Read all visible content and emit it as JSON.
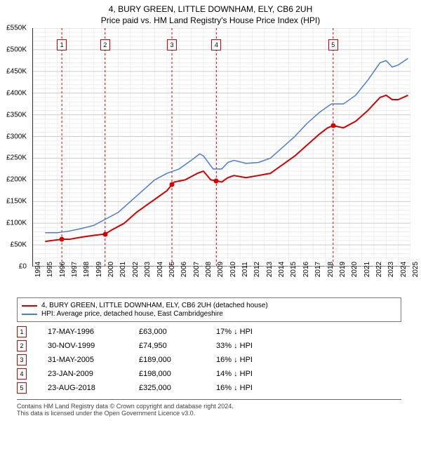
{
  "title": "4, BURY GREEN, LITTLE DOWNHAM, ELY, CB6 2UH",
  "subtitle": "Price paid vs. HM Land Registry's House Price Index (HPI)",
  "chart": {
    "type": "line",
    "background_color": "#ffffff",
    "grid_major_color": "#cccccc",
    "grid_minor_color": "#eeeeee",
    "axis_color": "#333333",
    "label_fontsize": 10,
    "title_fontsize": 12,
    "x": {
      "min": 1994,
      "max": 2025,
      "tick_step": 1,
      "labels": [
        "1994",
        "1995",
        "1996",
        "1997",
        "1998",
        "1999",
        "2000",
        "2001",
        "2002",
        "2003",
        "2004",
        "2005",
        "2006",
        "2007",
        "2008",
        "2009",
        "2010",
        "2011",
        "2012",
        "2013",
        "2014",
        "2015",
        "2016",
        "2017",
        "2018",
        "2019",
        "2020",
        "2021",
        "2022",
        "2023",
        "2024",
        "2025"
      ]
    },
    "y": {
      "min": 0,
      "max": 550000,
      "tick_step": 50000,
      "labels": [
        "£0",
        "£50K",
        "£100K",
        "£150K",
        "£200K",
        "£250K",
        "£300K",
        "£350K",
        "£400K",
        "£450K",
        "£500K",
        "£550K"
      ]
    },
    "series": [
      {
        "name": "property",
        "label": "4, BURY GREEN, LITTLE DOWNHAM, ELY, CB6 2UH (detached house)",
        "color": "#d40000",
        "line_width": 2,
        "data": [
          [
            1995.0,
            58000
          ],
          [
            1996.37,
            63000
          ],
          [
            1997.0,
            63000
          ],
          [
            1998.0,
            68000
          ],
          [
            1999.0,
            72000
          ],
          [
            1999.92,
            74950
          ],
          [
            2000.5,
            85000
          ],
          [
            2001.5,
            100000
          ],
          [
            2002.5,
            125000
          ],
          [
            2003.5,
            145000
          ],
          [
            2004.5,
            165000
          ],
          [
            2005.0,
            175000
          ],
          [
            2005.41,
            189000
          ],
          [
            2005.6,
            195000
          ],
          [
            2006.5,
            200000
          ],
          [
            2007.5,
            215000
          ],
          [
            2008.0,
            220000
          ],
          [
            2008.6,
            200000
          ],
          [
            2009.06,
            198000
          ],
          [
            2009.5,
            195000
          ],
          [
            2010.0,
            205000
          ],
          [
            2010.5,
            210000
          ],
          [
            2011.5,
            205000
          ],
          [
            2012.5,
            210000
          ],
          [
            2013.5,
            215000
          ],
          [
            2014.5,
            235000
          ],
          [
            2015.5,
            255000
          ],
          [
            2016.5,
            280000
          ],
          [
            2017.5,
            305000
          ],
          [
            2018.2,
            320000
          ],
          [
            2018.65,
            325000
          ],
          [
            2019.5,
            320000
          ],
          [
            2020.5,
            335000
          ],
          [
            2021.5,
            360000
          ],
          [
            2022.5,
            390000
          ],
          [
            2023.0,
            395000
          ],
          [
            2023.5,
            385000
          ],
          [
            2024.0,
            385000
          ],
          [
            2024.8,
            395000
          ]
        ]
      },
      {
        "name": "hpi",
        "label": "HPI: Average price, detached house, East Cambridgeshire",
        "color": "#4a7bd4",
        "line_width": 1.5,
        "data": [
          [
            1995.0,
            78000
          ],
          [
            1996.0,
            78000
          ],
          [
            1997.0,
            82000
          ],
          [
            1998.0,
            88000
          ],
          [
            1999.0,
            95000
          ],
          [
            2000.0,
            110000
          ],
          [
            2001.0,
            125000
          ],
          [
            2002.0,
            150000
          ],
          [
            2003.0,
            175000
          ],
          [
            2004.0,
            200000
          ],
          [
            2005.0,
            215000
          ],
          [
            2006.0,
            225000
          ],
          [
            2007.0,
            245000
          ],
          [
            2007.7,
            260000
          ],
          [
            2008.0,
            255000
          ],
          [
            2008.8,
            225000
          ],
          [
            2009.5,
            225000
          ],
          [
            2010.0,
            240000
          ],
          [
            2010.5,
            245000
          ],
          [
            2011.5,
            238000
          ],
          [
            2012.5,
            240000
          ],
          [
            2013.5,
            250000
          ],
          [
            2014.5,
            275000
          ],
          [
            2015.5,
            300000
          ],
          [
            2016.5,
            330000
          ],
          [
            2017.5,
            355000
          ],
          [
            2018.5,
            375000
          ],
          [
            2019.5,
            375000
          ],
          [
            2020.5,
            395000
          ],
          [
            2021.5,
            430000
          ],
          [
            2022.5,
            470000
          ],
          [
            2023.0,
            475000
          ],
          [
            2023.5,
            460000
          ],
          [
            2024.0,
            465000
          ],
          [
            2024.8,
            480000
          ]
        ]
      }
    ],
    "sale_markers": [
      {
        "n": "1",
        "year": 1996.37,
        "price": 63000
      },
      {
        "n": "2",
        "year": 1999.92,
        "price": 74950
      },
      {
        "n": "3",
        "year": 2005.41,
        "price": 189000
      },
      {
        "n": "4",
        "year": 2009.06,
        "price": 198000
      },
      {
        "n": "5",
        "year": 2018.65,
        "price": 325000
      }
    ],
    "marker_line_color": "#d40000",
    "marker_line_dash": "3,3",
    "marker_box_border": "#d40000",
    "marker_dot_color": "#d40000"
  },
  "sales_table": {
    "arrow": "↓",
    "hpi_label": "HPI",
    "rows": [
      {
        "n": "1",
        "date": "17-MAY-1996",
        "price": "£63,000",
        "delta": "17%"
      },
      {
        "n": "2",
        "date": "30-NOV-1999",
        "price": "£74,950",
        "delta": "33%"
      },
      {
        "n": "3",
        "date": "31-MAY-2005",
        "price": "£189,000",
        "delta": "16%"
      },
      {
        "n": "4",
        "date": "23-JAN-2009",
        "price": "£198,000",
        "delta": "14%"
      },
      {
        "n": "5",
        "date": "23-AUG-2018",
        "price": "£325,000",
        "delta": "16%"
      }
    ]
  },
  "footer": {
    "line1": "Contains HM Land Registry data © Crown copyright and database right 2024.",
    "line2": "This data is licensed under the Open Government Licence v3.0."
  }
}
